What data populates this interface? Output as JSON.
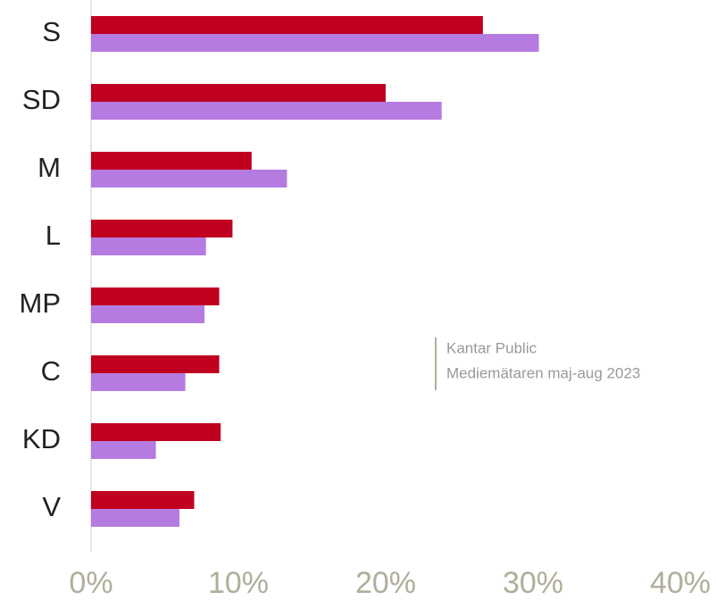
{
  "chart_data": {
    "type": "hbar",
    "categories": [
      "S",
      "SD",
      "M",
      "L",
      "MP",
      "C",
      "KD",
      "V"
    ],
    "series": [
      {
        "color": "#c0001f",
        "values": [
          26.6,
          20.0,
          10.9,
          9.6,
          8.7,
          8.7,
          8.8,
          7.0
        ]
      },
      {
        "color": "#b57be0",
        "values": [
          30.4,
          23.8,
          13.3,
          7.8,
          7.7,
          6.4,
          4.4,
          6.0
        ]
      }
    ],
    "xlim": [
      0,
      40
    ],
    "xticks": [
      {
        "value": 0,
        "label": "0%"
      },
      {
        "value": 10,
        "label": "10%"
      },
      {
        "value": 20,
        "label": "20%"
      },
      {
        "value": 30,
        "label": "30%"
      },
      {
        "value": 40,
        "label": "40%"
      }
    ],
    "grid": false,
    "annotations": [
      "Kantar Public",
      "Mediemätaren maj-aug 2023"
    ]
  }
}
